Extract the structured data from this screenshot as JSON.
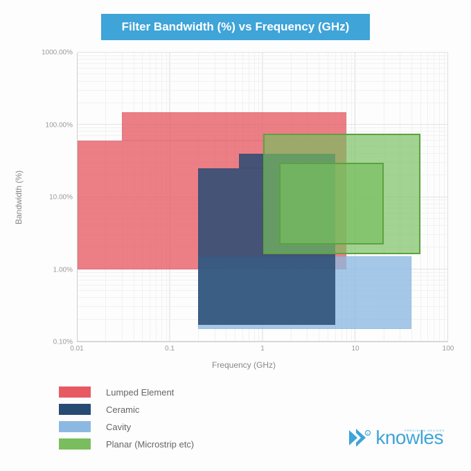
{
  "title": "Filter Bandwidth (%) vs Frequency (GHz)",
  "title_bg": "#3fa4d8",
  "title_color": "#ffffff",
  "chart": {
    "type": "log-log-region",
    "x_axis": {
      "label": "Frequency (GHz)",
      "scale": "log",
      "min_exp": -2,
      "max_exp": 2,
      "ticks": [
        {
          "exp": -2,
          "label": "0.01"
        },
        {
          "exp": -1,
          "label": "0.1"
        },
        {
          "exp": 0,
          "label": "1"
        },
        {
          "exp": 1,
          "label": "10"
        },
        {
          "exp": 2,
          "label": "100"
        }
      ]
    },
    "y_axis": {
      "label": "Bandwidth (%)",
      "scale": "log",
      "min_exp": -1,
      "max_exp": 3,
      "ticks": [
        {
          "exp": -1,
          "label": "0.10%"
        },
        {
          "exp": 0,
          "label": "1.00%"
        },
        {
          "exp": 1,
          "label": "10.00%"
        },
        {
          "exp": 2,
          "label": "100.00%"
        },
        {
          "exp": 3,
          "label": "1000.00%"
        }
      ]
    },
    "background_color": "#ffffff",
    "grid_color": "#e3e3e3",
    "grid_minor_color": "#f1f1f1",
    "regions": [
      {
        "name": "Lumped Element",
        "color": "rgba(231, 90, 100, 0.78)",
        "swatch": "#e75a64",
        "x_min": 0.01,
        "x_max": 8,
        "y_min": 1.0,
        "y_max": 150,
        "step_x": 0.03,
        "step_y": 60
      },
      {
        "name": "Cavity",
        "color": "rgba(140, 185, 225, 0.78)",
        "swatch": "#8cb9e1",
        "x_min": 0.2,
        "x_max": 40,
        "y_min": 0.15,
        "y_max": 1.5
      },
      {
        "name": "Ceramic",
        "color": "rgba(40, 75, 115, 0.85)",
        "swatch": "#284b73",
        "x_min": 0.2,
        "x_max": 6,
        "y_min": 0.17,
        "y_max": 40,
        "step_x": 0.55,
        "step_y": 25
      },
      {
        "name": "Planar (Microstrip etc)",
        "color": "rgba(120, 190, 95, 0.68)",
        "swatch": "#7abd5e",
        "border": "#5aa33f",
        "x_min": 1.0,
        "x_max": 50,
        "y_min": 1.6,
        "y_max": 75,
        "inner": {
          "x_min": 1.5,
          "x_max": 20,
          "y_min": 2.2,
          "y_max": 30
        }
      }
    ],
    "legend_order": [
      "Lumped Element",
      "Ceramic",
      "Cavity",
      "Planar (Microstrip etc)"
    ]
  },
  "logo": {
    "text": "knowles",
    "sub": "PRECISION DEVICES",
    "color": "#3fa4d8"
  }
}
